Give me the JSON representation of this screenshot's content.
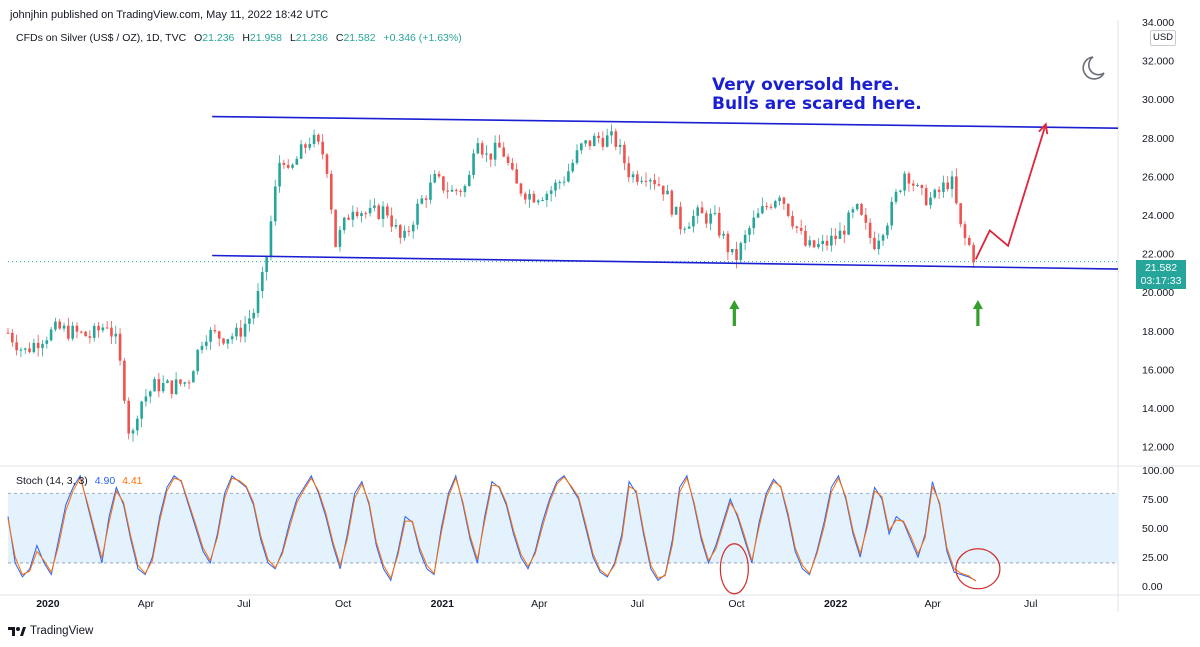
{
  "header": {
    "publisher_line": "johnjhin published on TradingView.com, May 11, 2022 18:42 UTC"
  },
  "symbol": {
    "title": "CFDs on Silver (US$ / OZ), 1D, TVC",
    "open_label": "O",
    "open": "21.236",
    "high_label": "H",
    "high": "21.958",
    "low_label": "L",
    "low": "21.236",
    "close_label": "C",
    "close": "21.582",
    "change": "+0.346 (+1.63%)"
  },
  "currency": "USD",
  "price_tag": {
    "price": "21.582",
    "countdown": "03:17:33"
  },
  "annotation": {
    "line1": "Very oversold here.",
    "line2": "Bulls are scared here."
  },
  "stoch": {
    "label": "Stoch (14, 3, 3)",
    "k_value": "4.90",
    "d_value": "4.41"
  },
  "footer": {
    "brand": "TradingView",
    "logo_icon": "tradingview-logo-icon"
  },
  "colors": {
    "up": "#26a69a",
    "down": "#ef5350",
    "trendline": "#1a1fd1",
    "projection": "#e0243c",
    "arrow": "#33a02c",
    "stoch_k": "#2962ff",
    "stoch_d": "#ff6d00",
    "stoch_band": "#e3f2fd",
    "circle": "#d32f2f"
  },
  "chart_data": [
    {
      "type": "candlestick",
      "title": "CFDs on Silver (US$ / OZ), 1D, TVC",
      "ylabel": "USD",
      "ylim": [
        11.2,
        34
      ],
      "y_ticks": [
        "12.000",
        "14.000",
        "16.000",
        "18.000",
        "20.000",
        "22.000",
        "24.000",
        "26.000",
        "28.000",
        "30.000",
        "32.000",
        "34.000"
      ],
      "x_ticks": [
        "2020",
        "Apr",
        "Jul",
        "Oct",
        "2021",
        "Apr",
        "Jul",
        "Oct",
        "2022",
        "Apr",
        "Jul"
      ],
      "x_tick_dates": [
        "2020-01-01",
        "2020-04-01",
        "2020-07-01",
        "2020-10-01",
        "2021-01-01",
        "2021-04-01",
        "2021-07-01",
        "2021-10-01",
        "2022-01-01",
        "2022-04-01",
        "2022-07-01"
      ],
      "x_range": [
        "2019-11-25",
        "2022-09-20"
      ],
      "close_series": [
        [
          "2019-11-25",
          17.9
        ],
        [
          "2019-12-10",
          16.9
        ],
        [
          "2019-12-25",
          17.6
        ],
        [
          "2020-01-10",
          18.1
        ],
        [
          "2020-01-25",
          17.9
        ],
        [
          "2020-02-10",
          17.7
        ],
        [
          "2020-02-25",
          18.4
        ],
        [
          "2020-03-05",
          17.3
        ],
        [
          "2020-03-12",
          14.8
        ],
        [
          "2020-03-18",
          12.0
        ],
        [
          "2020-03-25",
          14.2
        ],
        [
          "2020-04-10",
          15.2
        ],
        [
          "2020-04-25",
          15.1
        ],
        [
          "2020-05-10",
          15.4
        ],
        [
          "2020-05-25",
          17.9
        ],
        [
          "2020-06-10",
          17.7
        ],
        [
          "2020-06-25",
          17.8
        ],
        [
          "2020-07-10",
          19.0
        ],
        [
          "2020-07-20",
          21.0
        ],
        [
          "2020-07-28",
          24.5
        ],
        [
          "2020-08-05",
          27.5
        ],
        [
          "2020-08-11",
          26.0
        ],
        [
          "2020-08-20",
          27.0
        ],
        [
          "2020-09-01",
          28.0
        ],
        [
          "2020-09-15",
          27.0
        ],
        [
          "2020-09-24",
          22.5
        ],
        [
          "2020-10-10",
          24.5
        ],
        [
          "2020-10-25",
          24.0
        ],
        [
          "2020-11-10",
          24.3
        ],
        [
          "2020-11-25",
          22.5
        ],
        [
          "2020-12-10",
          24.5
        ],
        [
          "2020-12-25",
          25.8
        ],
        [
          "2021-01-10",
          25.2
        ],
        [
          "2021-01-25",
          25.5
        ],
        [
          "2021-02-01",
          28.5
        ],
        [
          "2021-02-10",
          27.0
        ],
        [
          "2021-02-25",
          27.5
        ],
        [
          "2021-03-10",
          25.5
        ],
        [
          "2021-03-25",
          25.0
        ],
        [
          "2021-04-10",
          25.2
        ],
        [
          "2021-04-25",
          26.0
        ],
        [
          "2021-05-10",
          27.5
        ],
        [
          "2021-05-25",
          28.0
        ],
        [
          "2021-06-10",
          27.9
        ],
        [
          "2021-06-25",
          26.0
        ],
        [
          "2021-07-10",
          26.2
        ],
        [
          "2021-07-25",
          25.4
        ],
        [
          "2021-08-10",
          23.5
        ],
        [
          "2021-08-25",
          24.0
        ],
        [
          "2021-09-10",
          23.8
        ],
        [
          "2021-09-29",
          21.6
        ],
        [
          "2021-10-15",
          23.5
        ],
        [
          "2021-10-25",
          24.2
        ],
        [
          "2021-11-10",
          25.2
        ],
        [
          "2021-11-20",
          24.0
        ],
        [
          "2021-12-05",
          22.3
        ],
        [
          "2021-12-20",
          22.4
        ],
        [
          "2022-01-05",
          23.0
        ],
        [
          "2022-01-20",
          24.3
        ],
        [
          "2022-02-05",
          22.5
        ],
        [
          "2022-02-20",
          24.0
        ],
        [
          "2022-03-07",
          26.4
        ],
        [
          "2022-03-20",
          25.0
        ],
        [
          "2022-04-01",
          24.8
        ],
        [
          "2022-04-18",
          25.9
        ],
        [
          "2022-04-28",
          23.0
        ],
        [
          "2022-05-06",
          22.3
        ],
        [
          "2022-05-11",
          21.582
        ]
      ],
      "last_price": 21.582,
      "trendlines": [
        {
          "name": "upper-resistance",
          "from": [
            "2020-06-20",
            29.1
          ],
          "to": [
            "2022-09-20",
            28.5
          ]
        },
        {
          "name": "lower-support",
          "from": [
            "2020-06-20",
            21.9
          ],
          "to": [
            "2022-09-20",
            21.2
          ]
        }
      ],
      "projection_path": [
        [
          "2022-05-11",
          21.7
        ],
        [
          "2022-05-24",
          23.2
        ],
        [
          "2022-06-10",
          22.4
        ],
        [
          "2022-07-15",
          28.7
        ]
      ],
      "support_arrows": [
        "2021-09-29",
        "2022-05-13"
      ]
    },
    {
      "type": "line",
      "title": "Stoch (14, 3, 3)",
      "ylim": [
        -5,
        100
      ],
      "y_ticks": [
        "0.00",
        "25.00",
        "50.00",
        "75.00",
        "100.00"
      ],
      "bands": [
        20,
        80
      ],
      "series": [
        {
          "name": "%K",
          "values": [
            60,
            20,
            8,
            15,
            35,
            20,
            10,
            40,
            70,
            85,
            95,
            70,
            45,
            20,
            60,
            85,
            70,
            40,
            15,
            10,
            25,
            60,
            85,
            95,
            90,
            70,
            50,
            30,
            20,
            45,
            80,
            95,
            90,
            85,
            70,
            40,
            20,
            15,
            30,
            55,
            75,
            85,
            95,
            80,
            60,
            35,
            15,
            45,
            80,
            90,
            70,
            35,
            15,
            5,
            30,
            60,
            55,
            30,
            15,
            10,
            50,
            80,
            95,
            70,
            40,
            20,
            60,
            90,
            85,
            70,
            45,
            25,
            15,
            30,
            55,
            75,
            90,
            95,
            85,
            75,
            50,
            25,
            12,
            8,
            20,
            45,
            90,
            80,
            45,
            15,
            5,
            10,
            40,
            85,
            95,
            70,
            40,
            20,
            35,
            55,
            75,
            60,
            40,
            20,
            55,
            80,
            92,
            85,
            60,
            30,
            15,
            10,
            30,
            55,
            85,
            95,
            75,
            45,
            25,
            55,
            85,
            75,
            45,
            60,
            55,
            40,
            25,
            45,
            90,
            70,
            30,
            12,
            10,
            8,
            5
          ]
        },
        {
          "name": "%D",
          "values": [
            58,
            25,
            10,
            13,
            30,
            22,
            12,
            35,
            65,
            82,
            93,
            72,
            48,
            24,
            55,
            82,
            72,
            43,
            18,
            11,
            22,
            56,
            82,
            93,
            91,
            72,
            53,
            33,
            22,
            42,
            76,
            93,
            91,
            86,
            72,
            43,
            23,
            16,
            28,
            51,
            72,
            83,
            93,
            82,
            63,
            38,
            18,
            41,
            76,
            88,
            72,
            38,
            18,
            7,
            27,
            56,
            56,
            33,
            18,
            11,
            46,
            77,
            93,
            72,
            43,
            23,
            56,
            87,
            86,
            72,
            48,
            28,
            17,
            28,
            51,
            72,
            88,
            94,
            86,
            77,
            53,
            28,
            14,
            9,
            18,
            41,
            86,
            82,
            48,
            18,
            7,
            9,
            36,
            81,
            93,
            72,
            43,
            22,
            32,
            52,
            72,
            62,
            43,
            22,
            51,
            77,
            90,
            86,
            63,
            33,
            18,
            11,
            28,
            51,
            81,
            93,
            77,
            48,
            28,
            51,
            82,
            77,
            48,
            57,
            56,
            43,
            28,
            42,
            86,
            72,
            33,
            15,
            11,
            9,
            4.41
          ]
        }
      ]
    }
  ]
}
